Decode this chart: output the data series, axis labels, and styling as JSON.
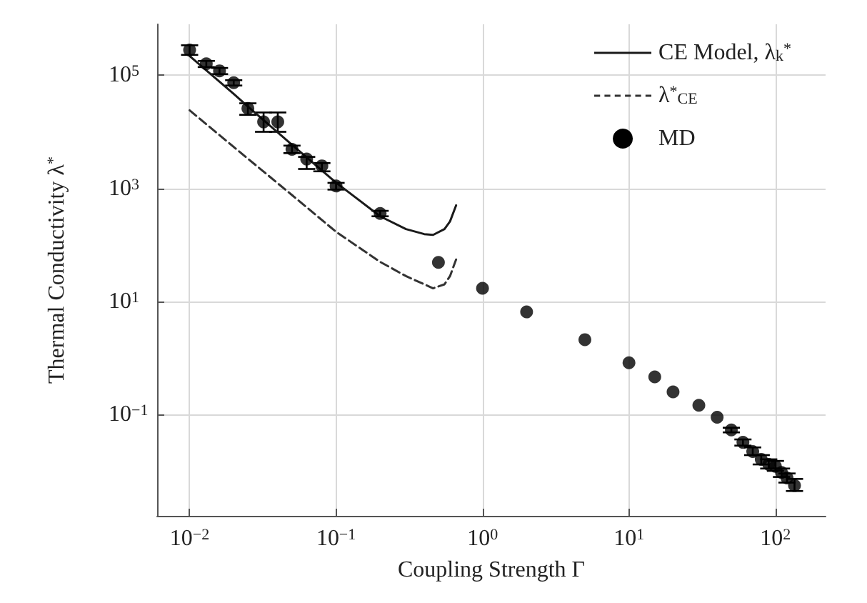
{
  "chart_data": {
    "type": "scatter",
    "xlabel": "Coupling Strength Γ",
    "ylabel": "Thermal Conductivity λ$^{*}$",
    "log": "xy",
    "grid": true,
    "legend": "top right",
    "xlim": [
      0.006,
      220
    ],
    "ylim": [
      0.0016,
      800000
    ],
    "xticks": [
      {
        "value": 0.01,
        "label": "10$^{−2}$"
      },
      {
        "value": 0.1,
        "label": "10$^{−1}$"
      },
      {
        "value": 1,
        "label": "10$^{0}$"
      },
      {
        "value": 10,
        "label": "10$^{1}$"
      },
      {
        "value": 100,
        "label": "10$^{2}$"
      }
    ],
    "yticks": [
      {
        "value": 0.1,
        "label": "10$^{−1}$"
      },
      {
        "value": 10,
        "label": "10$^{1}$"
      },
      {
        "value": 1000,
        "label": "10$^{3}$"
      },
      {
        "value": 100000,
        "label": "10$^{5}$"
      }
    ],
    "series": [
      {
        "name": "CE Model, λ$_{k}$$^{*}$",
        "type": "line",
        "color": "#1a1a1a",
        "line_style": "solid",
        "x": [
          0.01,
          0.02,
          0.025,
          0.05,
          0.1,
          0.2,
          0.3,
          0.4,
          0.46,
          0.55,
          0.6,
          0.66
        ],
        "values": [
          220000,
          47000,
          28000,
          5900,
          1260,
          320,
          190,
          155,
          150,
          190,
          260,
          500
        ]
      },
      {
        "name": "λ$^{*}$$_{CE}$",
        "type": "line",
        "color": "#333333",
        "line_style": "dashed",
        "x": [
          0.01,
          0.02,
          0.05,
          0.1,
          0.2,
          0.3,
          0.46,
          0.55,
          0.6,
          0.66
        ],
        "values": [
          24000,
          5400,
          760,
          170,
          50,
          28,
          17,
          20,
          28,
          55
        ]
      },
      {
        "name": "MD",
        "color": "#000000",
        "marker": "circle",
        "x": [
          0.01,
          0.013,
          0.016,
          0.02,
          0.025,
          0.032,
          0.04,
          0.05,
          0.063,
          0.08,
          0.1,
          0.2,
          0.5,
          1,
          2,
          5,
          10,
          15,
          20,
          30,
          40,
          50,
          60,
          70,
          80,
          90,
          100,
          110,
          120,
          135
        ],
        "values": [
          280000,
          160000,
          120000,
          74000,
          26000,
          15000,
          15000,
          4900,
          3300,
          2500,
          1100,
          360,
          49,
          17,
          6.5,
          2.1,
          0.82,
          0.46,
          0.25,
          0.145,
          0.089,
          0.053,
          0.032,
          0.022,
          0.016,
          0.013,
          0.012,
          0.0094,
          0.0075,
          0.0055
        ],
        "errors": [
          [
            230000,
            340000
          ],
          [
            140000,
            180000
          ],
          [
            105000,
            135000
          ],
          [
            66000,
            82000
          ],
          [
            20000,
            32000
          ],
          [
            10000,
            22000
          ],
          [
            10000,
            22000
          ],
          [
            4200,
            5700
          ],
          [
            2200,
            3600
          ],
          [
            2000,
            2800
          ],
          [
            950,
            1250
          ],
          [
            320,
            400
          ],
          null,
          null,
          null,
          null,
          null,
          null,
          null,
          null,
          null,
          [
            0.048,
            0.058
          ],
          [
            0.028,
            0.036
          ],
          [
            0.019,
            0.026
          ],
          [
            0.013,
            0.019
          ],
          [
            0.011,
            0.016
          ],
          [
            0.01,
            0.015
          ],
          [
            0.0078,
            0.011
          ],
          [
            0.0062,
            0.009
          ],
          [
            0.0044,
            0.0072
          ]
        ]
      }
    ]
  }
}
